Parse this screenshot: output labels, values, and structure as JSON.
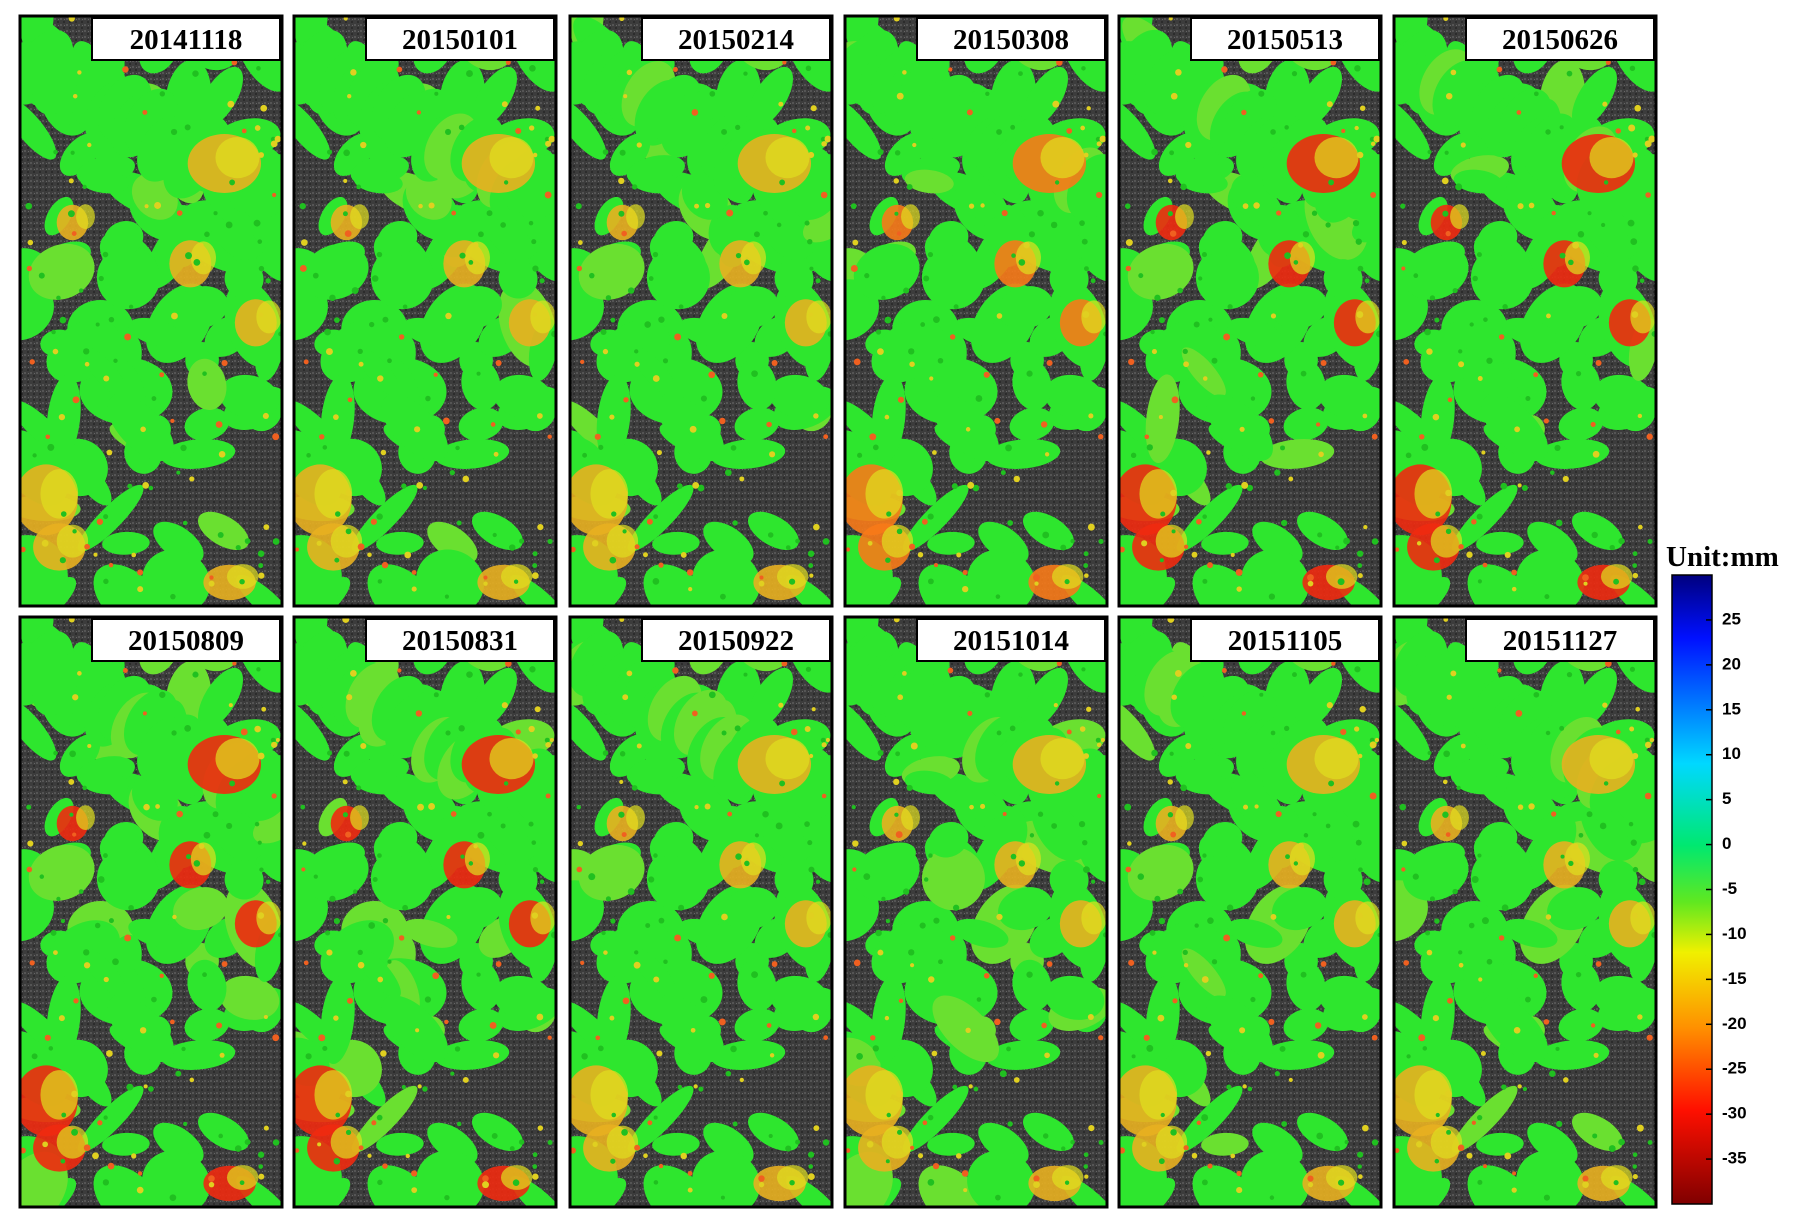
{
  "panels": [
    {
      "date": "20141118"
    },
    {
      "date": "20150101"
    },
    {
      "date": "20150214"
    },
    {
      "date": "20150308"
    },
    {
      "date": "20150513"
    },
    {
      "date": "20150626"
    },
    {
      "date": "20150809"
    },
    {
      "date": "20150831"
    },
    {
      "date": "20150922"
    },
    {
      "date": "20151014"
    },
    {
      "date": "20151105"
    },
    {
      "date": "20151127"
    }
  ],
  "colorbar": {
    "title": "Unit:mm",
    "lim": [
      -40,
      30
    ],
    "ticks": [
      25,
      20,
      15,
      10,
      5,
      0,
      -5,
      -10,
      -15,
      -20,
      -25,
      -30,
      -35
    ]
  }
}
